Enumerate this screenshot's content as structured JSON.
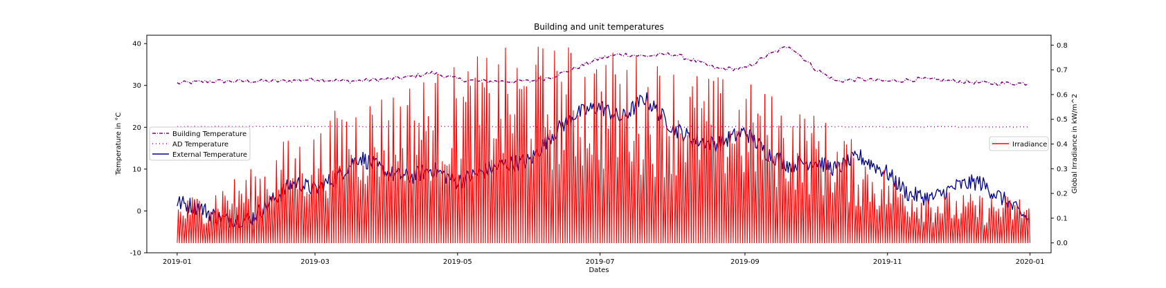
{
  "chart_data": {
    "type": "line",
    "title": "Building and unit temperatures",
    "xlabel": "Dates",
    "ylabel_left": "Temperature in °C",
    "ylabel_right": "Global Irradiance in kW/m^2",
    "xlim": [
      "2018-12-19",
      "2020-01-10"
    ],
    "ylim_left": [
      -10,
      42
    ],
    "ylim_right": [
      -0.04,
      0.84
    ],
    "x_ticks": [
      "2019-01",
      "2019-03",
      "2019-05",
      "2019-07",
      "2019-09",
      "2019-11",
      "2020-01"
    ],
    "y_ticks_left": [
      -10,
      0,
      10,
      20,
      30,
      40
    ],
    "y_ticks_right": [
      "0.0",
      "0.1",
      "0.2",
      "0.3",
      "0.4",
      "0.5",
      "0.6",
      "0.7",
      "0.8"
    ],
    "grid": false,
    "legend_left": {
      "placement": "center-left",
      "entries": [
        "Building Temperature",
        "AD Temperature",
        "External Temperature"
      ]
    },
    "legend_right": {
      "placement": "center-right",
      "entries": [
        "Irradiance"
      ]
    },
    "series": [
      {
        "name": "Building Temperature",
        "axis": "left",
        "color": "#800080",
        "style": "dashdot",
        "x": [
          "2019-01-01",
          "2019-01-15",
          "2019-02-01",
          "2019-02-15",
          "2019-03-01",
          "2019-03-15",
          "2019-04-01",
          "2019-04-10",
          "2019-04-20",
          "2019-05-01",
          "2019-05-10",
          "2019-05-20",
          "2019-06-01",
          "2019-06-10",
          "2019-06-20",
          "2019-07-01",
          "2019-07-10",
          "2019-07-20",
          "2019-08-01",
          "2019-08-10",
          "2019-08-20",
          "2019-09-01",
          "2019-09-10",
          "2019-09-20",
          "2019-10-01",
          "2019-10-10",
          "2019-10-20",
          "2019-11-01",
          "2019-11-15",
          "2019-12-01",
          "2019-12-15",
          "2019-12-31"
        ],
        "values": [
          30.5,
          31,
          31,
          31,
          31.5,
          31,
          31.5,
          32,
          33,
          31.5,
          31,
          31,
          31,
          32,
          34,
          36.5,
          37.5,
          37,
          37.5,
          36,
          34,
          34,
          37,
          39.5,
          34,
          31,
          31.5,
          31,
          31.5,
          31,
          30.5,
          30.5
        ]
      },
      {
        "name": "AD Temperature",
        "axis": "left",
        "color": "#800080",
        "style": "dotted",
        "x": [
          "2019-01-01",
          "2019-06-10",
          "2019-07-01",
          "2019-07-15",
          "2019-08-01",
          "2019-12-31"
        ],
        "values": [
          20.2,
          20.1,
          20.1,
          20.0,
          20.1,
          20.1
        ]
      },
      {
        "name": "External Temperature",
        "axis": "left",
        "color": "#00008b",
        "style": "solid",
        "x": [
          "2019-01-01",
          "2019-01-10",
          "2019-01-20",
          "2019-02-01",
          "2019-02-10",
          "2019-02-20",
          "2019-03-01",
          "2019-03-10",
          "2019-03-20",
          "2019-04-01",
          "2019-04-10",
          "2019-04-20",
          "2019-05-01",
          "2019-05-10",
          "2019-05-20",
          "2019-06-01",
          "2019-06-10",
          "2019-06-20",
          "2019-07-01",
          "2019-07-10",
          "2019-07-20",
          "2019-08-01",
          "2019-08-10",
          "2019-08-20",
          "2019-09-01",
          "2019-09-10",
          "2019-09-20",
          "2019-10-01",
          "2019-10-10",
          "2019-10-20",
          "2019-11-01",
          "2019-11-10",
          "2019-11-20",
          "2019-12-01",
          "2019-12-10",
          "2019-12-20",
          "2019-12-31"
        ],
        "values": [
          2,
          1,
          -2,
          -2,
          2,
          7,
          5,
          8,
          13,
          9,
          8,
          10,
          7,
          9,
          11,
          12,
          18,
          23,
          25,
          22,
          27,
          20,
          17,
          16,
          19,
          14,
          11,
          12,
          10,
          13,
          9,
          4,
          3,
          6,
          7,
          3,
          -2
        ]
      },
      {
        "name": "Irradiance",
        "axis": "right",
        "color": "#ff0000",
        "style": "solid",
        "peak_kind": "daily",
        "x": [
          "2019-01-01",
          "2019-01-15",
          "2019-02-01",
          "2019-02-15",
          "2019-03-01",
          "2019-03-15",
          "2019-04-01",
          "2019-04-15",
          "2019-05-01",
          "2019-05-15",
          "2019-06-01",
          "2019-06-15",
          "2019-07-01",
          "2019-07-15",
          "2019-08-01",
          "2019-08-15",
          "2019-09-01",
          "2019-09-15",
          "2019-10-01",
          "2019-10-15",
          "2019-11-01",
          "2019-11-15",
          "2019-12-01",
          "2019-12-15",
          "2019-12-31"
        ],
        "values": [
          0.17,
          0.23,
          0.3,
          0.42,
          0.46,
          0.6,
          0.63,
          0.69,
          0.73,
          0.78,
          0.81,
          0.81,
          0.79,
          0.78,
          0.74,
          0.69,
          0.66,
          0.6,
          0.53,
          0.43,
          0.3,
          0.24,
          0.2,
          0.2,
          0.19
        ]
      }
    ]
  }
}
